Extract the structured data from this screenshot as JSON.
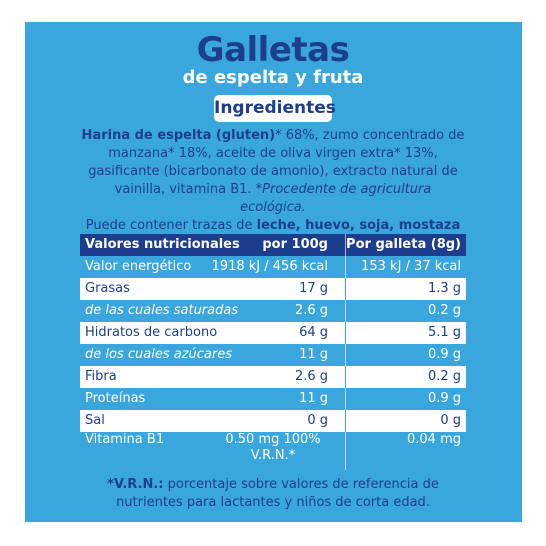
{
  "header": {
    "title": "Galletas",
    "subtitle": "de espelta y fruta",
    "section": "Ingredientes"
  },
  "ingredients": [
    "Harina de espelta (gluten)",
    "* 68%, zumo concentrado de manzana* 18%, aceite de oliva virgen extra* 13%, gasificante (bicarbonato de amonio), extracto natural de vainilla, vitamina B1. ",
    "*Procedente de agricultura ecológica.",
    "Puede contener trazas de ",
    "leche, huevo, soja, mostaza y frutos de cáscara."
  ],
  "table": {
    "header": [
      "Valores nutricionales",
      "por 100g",
      "Por galleta (8g)"
    ],
    "rows": [
      [
        "Valor energético",
        "1918 kJ / 456 kcal",
        "153 kJ / 37 kcal"
      ],
      [
        "Grasas",
        "17 g",
        "1.3 g"
      ],
      [
        "de las cuales saturadas",
        "2.6 g",
        "0.2 g"
      ],
      [
        "Hidratos de carbono",
        "64 g",
        "5.1 g"
      ],
      [
        "de los cuales azúcares",
        "11 g",
        "0.9 g"
      ],
      [
        "Fibra",
        "2.6 g",
        "0.2 g"
      ],
      [
        "Proteínas",
        "11 g",
        "0.9 g"
      ],
      [
        "Sal",
        "0 g",
        "0 g"
      ],
      [
        "Vitamina B1",
        "0.50 mg 100% V.R.N.*",
        "0.04 mg"
      ]
    ]
  },
  "footnote": [
    "*V.R.N.:",
    " porcentaje sobre valores de referencia de nutrientes para lactantes y niños de corta edad."
  ]
}
